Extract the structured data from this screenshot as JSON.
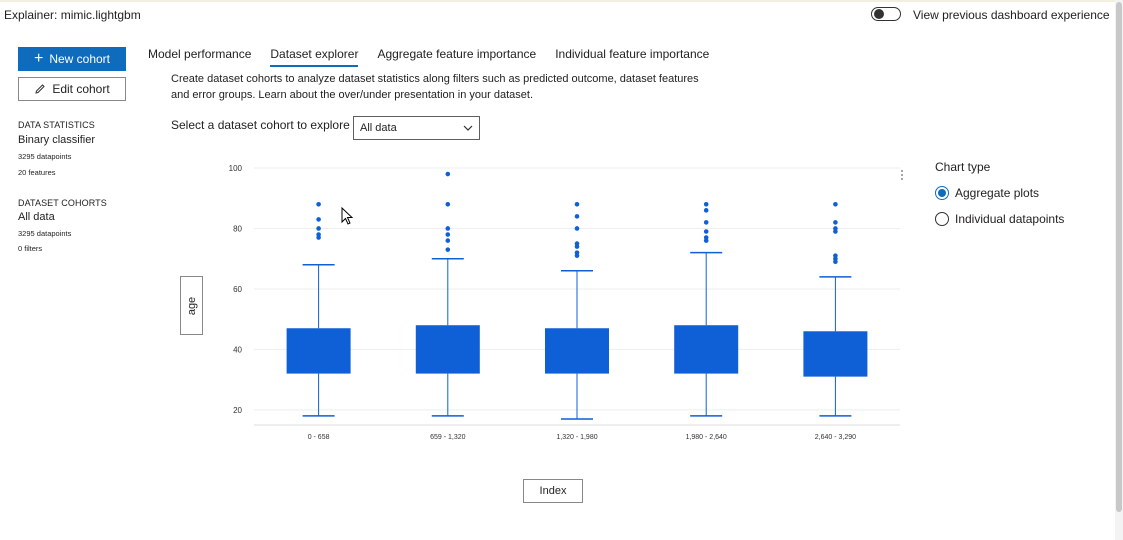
{
  "header": {
    "title": "Explainer:  mimic.lightgbm",
    "toggle_label": "View previous dashboard experience"
  },
  "sidebar": {
    "new_cohort": "New cohort",
    "edit_cohort": "Edit cohort",
    "data_stats_heading": "DATA STATISTICS",
    "classifier": "Binary classifier",
    "datapoints": "3295 datapoints",
    "features": "20 features",
    "cohorts_heading": "DATASET COHORTS",
    "cohort_name": "All data",
    "cohort_datapoints": "3295 datapoints",
    "cohort_filters": "0 filters"
  },
  "tabs": [
    {
      "label": "Model performance",
      "active": false
    },
    {
      "label": "Dataset explorer",
      "active": true
    },
    {
      "label": "Aggregate feature importance",
      "active": false
    },
    {
      "label": "Individual feature importance",
      "active": false
    }
  ],
  "description": {
    "line1": "Create dataset cohorts to analyze dataset statistics along filters such as predicted outcome, dataset features",
    "line2": "and error groups. Learn about the over/under presentation in your dataset."
  },
  "cohort_select": {
    "label": "Select a dataset cohort to explore",
    "value": "All data"
  },
  "axis_buttons": {
    "y": "age",
    "x": "Index"
  },
  "chart_type": {
    "title": "Chart type",
    "options": [
      {
        "label": "Aggregate plots",
        "selected": true
      },
      {
        "label": "Individual datapoints",
        "selected": false
      }
    ]
  },
  "chart_data": {
    "type": "box",
    "box_color": "#0f5fd7",
    "ylim": [
      15,
      100
    ],
    "yticks": [
      20,
      40,
      60,
      80,
      100
    ],
    "categories": [
      "0 - 658",
      "659 - 1,320",
      "1,320 - 1,980",
      "1,980 - 2,640",
      "2,640 - 3,290"
    ],
    "boxes": [
      {
        "min": 18,
        "q1": 32,
        "q3": 47,
        "max": 68,
        "outliers": [
          88,
          83,
          80,
          78,
          77
        ]
      },
      {
        "min": 18,
        "q1": 32,
        "q3": 48,
        "max": 70,
        "outliers": [
          98,
          88,
          80,
          78,
          76,
          73
        ]
      },
      {
        "min": 17,
        "q1": 32,
        "q3": 47,
        "max": 66,
        "outliers": [
          88,
          84,
          80,
          75,
          74,
          72,
          71
        ]
      },
      {
        "min": 18,
        "q1": 32,
        "q3": 48,
        "max": 72,
        "outliers": [
          88,
          86,
          82,
          79,
          77,
          76
        ]
      },
      {
        "min": 18,
        "q1": 31,
        "q3": 46,
        "max": 64,
        "outliers": [
          88,
          82,
          80,
          79,
          71,
          70,
          69
        ]
      }
    ]
  }
}
